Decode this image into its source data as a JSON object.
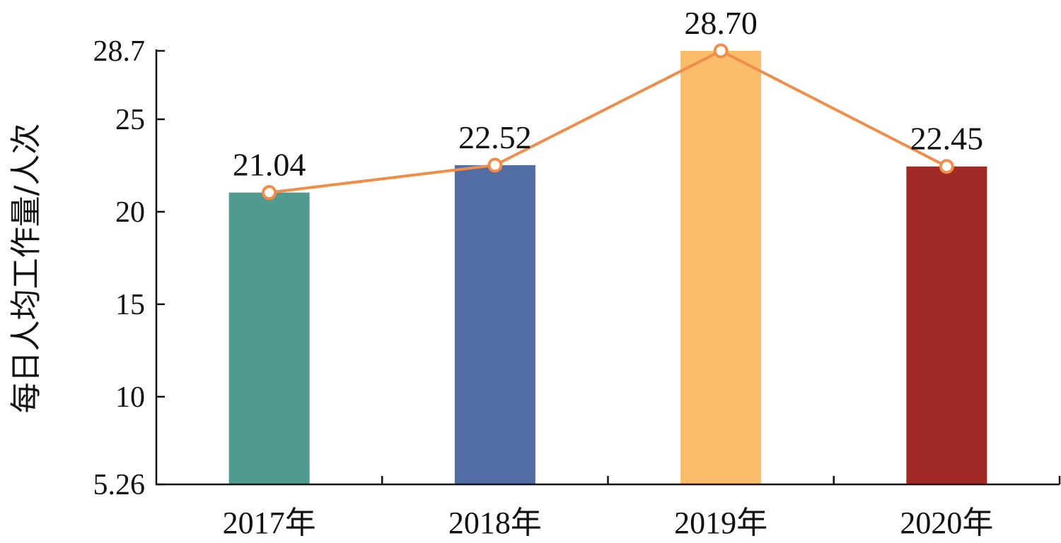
{
  "chart_data": {
    "type": "bar",
    "title": "",
    "xlabel": "",
    "ylabel": "每日人均工作量/人次",
    "categories": [
      "2017年",
      "2018年",
      "2019年",
      "2020年"
    ],
    "values": [
      21.04,
      22.52,
      28.7,
      22.45
    ],
    "value_labels": [
      "21.04",
      "22.52",
      "28.70",
      "22.45"
    ],
    "bar_colors": [
      "#519a8f",
      "#526ca4",
      "#f9bd6b",
      "#a22a26"
    ],
    "line": {
      "values": [
        21.04,
        22.52,
        28.7,
        22.45
      ],
      "color": "#ef8e4a"
    },
    "ylim": [
      5.26,
      28.7
    ],
    "yticks": [
      5.26,
      10,
      15,
      20,
      25,
      28.7
    ],
    "ytick_labels": [
      "5.26",
      "10",
      "15",
      "20",
      "25",
      "28.7"
    ],
    "grid": false,
    "legend": "none"
  }
}
